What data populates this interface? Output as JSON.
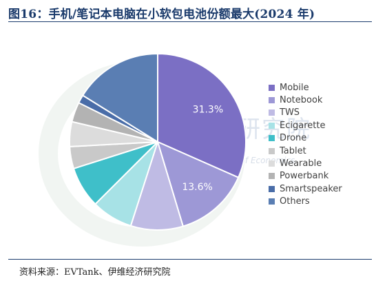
{
  "title": "图16：手机/笔记本电脑在小软包电池份额最大(2024 年)",
  "source": "资料来源：EVTank、伊维经济研究院",
  "watermark": {
    "text": "伊维经济研究院",
    "subtext": "China YiWei Institute of Economics"
  },
  "chart_data": {
    "type": "pie",
    "categories": [
      "Mobile",
      "Notebook",
      "TWS",
      "Ecigarette",
      "Drone",
      "Tablet",
      "Wearable",
      "Powerbank",
      "Smartspeaker",
      "Others"
    ],
    "values": [
      31.3,
      13.6,
      9.5,
      7.5,
      7.5,
      4.0,
      4.5,
      3.6,
      1.5,
      16.0
    ],
    "colors": [
      "#7b6fc4",
      "#9d98d6",
      "#bfbbe4",
      "#a7e2e6",
      "#3fbfc9",
      "#c9c9c9",
      "#dcdcdc",
      "#b3b3b3",
      "#4a6da8",
      "#5a7eb3"
    ],
    "data_labels": [
      "31.3%",
      "13.6%",
      "",
      "",
      "",
      "",
      "",
      "",
      "",
      ""
    ],
    "start_angle_deg": 0,
    "direction": "clockwise",
    "legend_position": "right"
  }
}
